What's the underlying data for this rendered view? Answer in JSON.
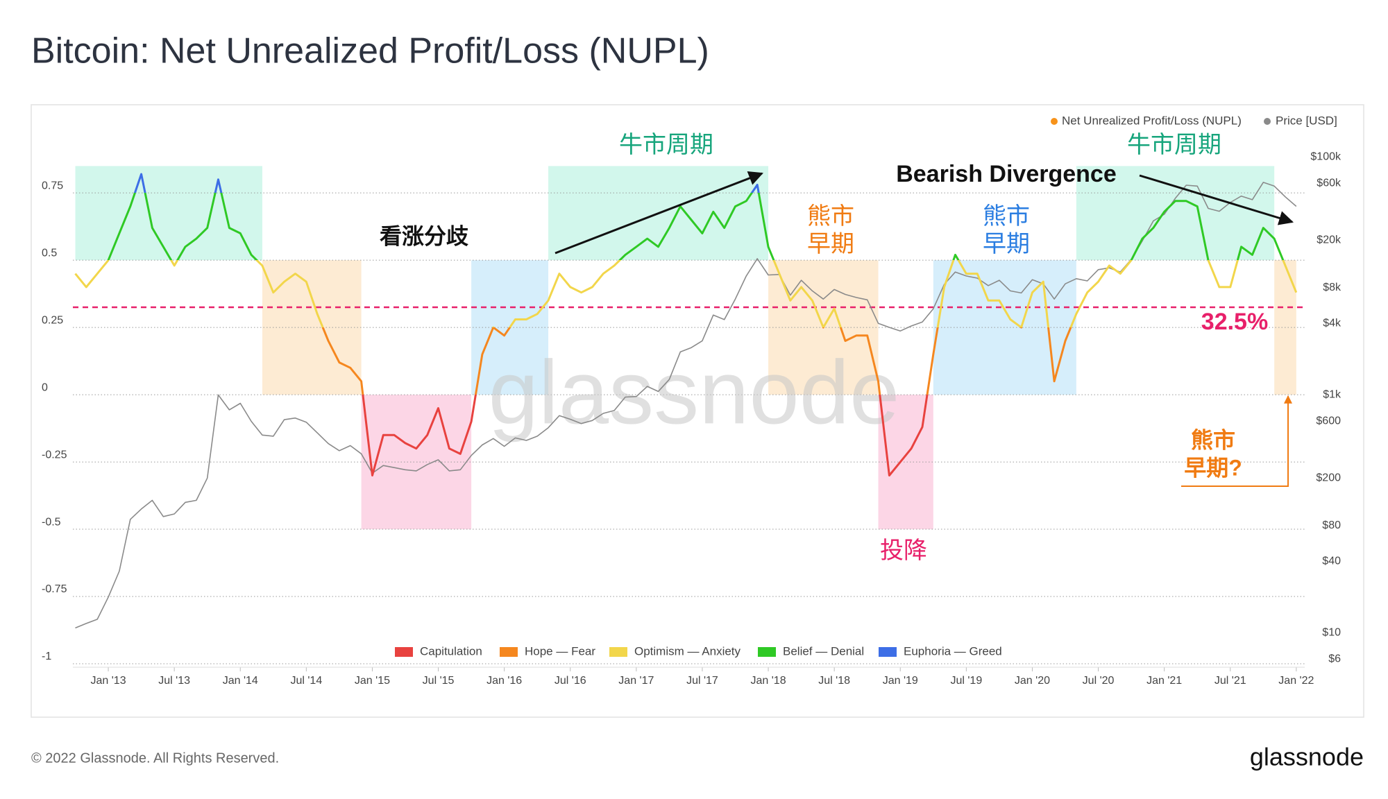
{
  "chart_data": {
    "type": "line",
    "title": "Bitcoin: Net Unrealized Profit/Loss (NUPL)",
    "footer": "© 2022 Glassnode. All Rights Reserved.",
    "logo": "glassnode",
    "watermark": "glassnode",
    "x": [
      "2012-10",
      "2012-11",
      "2012-12",
      "2013-01",
      "2013-02",
      "2013-03",
      "2013-04",
      "2013-05",
      "2013-06",
      "2013-07",
      "2013-08",
      "2013-09",
      "2013-10",
      "2013-11",
      "2013-12",
      "2014-01",
      "2014-02",
      "2014-03",
      "2014-04",
      "2014-05",
      "2014-06",
      "2014-07",
      "2014-08",
      "2014-09",
      "2014-10",
      "2014-11",
      "2014-12",
      "2015-01",
      "2015-02",
      "2015-03",
      "2015-04",
      "2015-05",
      "2015-06",
      "2015-07",
      "2015-08",
      "2015-09",
      "2015-10",
      "2015-11",
      "2015-12",
      "2016-01",
      "2016-02",
      "2016-03",
      "2016-04",
      "2016-05",
      "2016-06",
      "2016-07",
      "2016-08",
      "2016-09",
      "2016-10",
      "2016-11",
      "2016-12",
      "2017-01",
      "2017-02",
      "2017-03",
      "2017-04",
      "2017-05",
      "2017-06",
      "2017-07",
      "2017-08",
      "2017-09",
      "2017-10",
      "2017-11",
      "2017-12",
      "2018-01",
      "2018-02",
      "2018-03",
      "2018-04",
      "2018-05",
      "2018-06",
      "2018-07",
      "2018-08",
      "2018-09",
      "2018-10",
      "2018-11",
      "2018-12",
      "2019-01",
      "2019-02",
      "2019-03",
      "2019-04",
      "2019-05",
      "2019-06",
      "2019-07",
      "2019-08",
      "2019-09",
      "2019-10",
      "2019-11",
      "2019-12",
      "2020-01",
      "2020-02",
      "2020-03",
      "2020-04",
      "2020-05",
      "2020-06",
      "2020-07",
      "2020-08",
      "2020-09",
      "2020-10",
      "2020-11",
      "2020-12",
      "2021-01",
      "2021-02",
      "2021-03",
      "2021-04",
      "2021-05",
      "2021-06",
      "2021-07",
      "2021-08",
      "2021-09",
      "2021-10",
      "2021-11",
      "2021-12",
      "2022-01"
    ],
    "series": [
      {
        "name": "Net Unrealized Profit/Loss (NUPL)",
        "color": "#f7931a",
        "values": [
          0.45,
          0.4,
          0.45,
          0.5,
          0.6,
          0.7,
          0.82,
          0.62,
          0.55,
          0.48,
          0.55,
          0.58,
          0.62,
          0.8,
          0.62,
          0.6,
          0.52,
          0.48,
          0.38,
          0.42,
          0.45,
          0.42,
          0.3,
          0.2,
          0.12,
          0.1,
          0.05,
          -0.3,
          -0.15,
          -0.15,
          -0.18,
          -0.2,
          -0.15,
          -0.05,
          -0.2,
          -0.22,
          -0.1,
          0.15,
          0.25,
          0.22,
          0.28,
          0.28,
          0.3,
          0.35,
          0.45,
          0.4,
          0.38,
          0.4,
          0.45,
          0.48,
          0.52,
          0.55,
          0.58,
          0.55,
          0.62,
          0.7,
          0.65,
          0.6,
          0.68,
          0.62,
          0.7,
          0.72,
          0.78,
          0.55,
          0.45,
          0.35,
          0.4,
          0.35,
          0.25,
          0.32,
          0.2,
          0.22,
          0.22,
          0.05,
          -0.3,
          -0.25,
          -0.2,
          -0.12,
          0.15,
          0.4,
          0.52,
          0.45,
          0.45,
          0.35,
          0.35,
          0.28,
          0.25,
          0.38,
          0.42,
          0.05,
          0.2,
          0.3,
          0.38,
          0.42,
          0.48,
          0.45,
          0.5,
          0.58,
          0.62,
          0.68,
          0.72,
          0.72,
          0.7,
          0.5,
          0.4,
          0.4,
          0.55,
          0.52,
          0.62,
          0.58,
          0.48,
          0.38
        ]
      },
      {
        "name": "Price [USD]",
        "color": "#8a8a8a",
        "axis": "y2",
        "values": [
          11,
          12,
          13,
          20,
          33,
          90,
          110,
          130,
          95,
          100,
          125,
          130,
          200,
          1000,
          750,
          850,
          600,
          460,
          450,
          620,
          640,
          590,
          480,
          390,
          340,
          375,
          320,
          220,
          255,
          245,
          235,
          230,
          260,
          285,
          230,
          235,
          310,
          380,
          430,
          370,
          435,
          415,
          450,
          530,
          670,
          625,
          575,
          610,
          700,
          740,
          960,
          970,
          1180,
          1070,
          1350,
          2300,
          2500,
          2850,
          4700,
          4300,
          6400,
          10000,
          14000,
          10200,
          10300,
          6900,
          9200,
          7500,
          6400,
          7700,
          7000,
          6600,
          6300,
          4000,
          3700,
          3450,
          3800,
          4100,
          5300,
          8500,
          10800,
          10000,
          9600,
          8300,
          9200,
          7500,
          7200,
          9300,
          8600,
          6400,
          8600,
          9500,
          9100,
          11300,
          11700,
          10800,
          13800,
          19700,
          29000,
          33000,
          45000,
          58000,
          57000,
          37000,
          35000,
          41500,
          47000,
          43800,
          61300,
          57000,
          46300,
          38500
        ]
      }
    ],
    "zones": [
      {
        "name": "Capitulation",
        "color": "#e8423f",
        "from": -1,
        "to": 0
      },
      {
        "name": "Hope — Fear",
        "color": "#f5871f",
        "from": 0,
        "to": 0.25
      },
      {
        "name": "Optimism — Anxiety",
        "color": "#f2d64b",
        "from": 0.25,
        "to": 0.5
      },
      {
        "name": "Belief — Denial",
        "color": "#2fc925",
        "from": 0.5,
        "to": 0.75
      },
      {
        "name": "Euphoria — Greed",
        "color": "#3d6ee6",
        "from": 0.75,
        "to": 0.9
      }
    ],
    "bands": [
      {
        "x0": "2012-10",
        "x1": "2014-03",
        "y0": 0.5,
        "y1": 0.85,
        "color": "#d2f7ec"
      },
      {
        "x0": "2014-03",
        "x1": "2014-12",
        "y0": 0,
        "y1": 0.5,
        "color": "#fdebd3"
      },
      {
        "x0": "2014-12",
        "x1": "2015-10",
        "y0": -0.5,
        "y1": 0,
        "color": "#fcd6e6"
      },
      {
        "x0": "2015-10",
        "x1": "2016-05",
        "y0": 0,
        "y1": 0.5,
        "color": "#d6eefb"
      },
      {
        "x0": "2016-05",
        "x1": "2018-01",
        "y0": 0.5,
        "y1": 0.85,
        "color": "#d2f7ec"
      },
      {
        "x0": "2018-01",
        "x1": "2018-11",
        "y0": 0,
        "y1": 0.5,
        "color": "#fdebd3"
      },
      {
        "x0": "2018-11",
        "x1": "2019-04",
        "y0": -0.5,
        "y1": 0,
        "color": "#fcd6e6"
      },
      {
        "x0": "2019-04",
        "x1": "2020-05",
        "y0": 0,
        "y1": 0.5,
        "color": "#d6eefb"
      },
      {
        "x0": "2020-05",
        "x1": "2021-11",
        "y0": 0.5,
        "y1": 0.85,
        "color": "#d2f7ec"
      },
      {
        "x0": "2021-11",
        "x1": "2022-01",
        "y0": 0,
        "y1": 0.5,
        "color": "#fdebd3"
      }
    ],
    "threshold": {
      "value": 0.325,
      "label": "32.5%",
      "color": "#e8206a"
    },
    "annotations": [
      {
        "lines": [
          "牛市周期"
        ],
        "color": "#17a57c"
      },
      {
        "lines": [
          "牛市周期"
        ],
        "color": "#17a57c"
      },
      {
        "lines": [
          "看涨分歧"
        ],
        "color": "#111111"
      },
      {
        "lines": [
          "Bearish Divergence"
        ],
        "color": "#111111"
      },
      {
        "lines": [
          "熊市",
          "早期"
        ],
        "color": "#f07b12"
      },
      {
        "lines": [
          "熊市",
          "早期"
        ],
        "color": "#2a7de1"
      },
      {
        "lines": [
          "投降"
        ],
        "color": "#e8206a"
      },
      {
        "lines": [
          "熊市",
          "早期?"
        ],
        "color": "#f07b12"
      }
    ],
    "ylim": [
      -1,
      0.9
    ],
    "yticks": [
      -1,
      -0.75,
      -0.5,
      -0.25,
      0,
      0.25,
      0.5,
      0.75
    ],
    "y2lim": [
      5.5,
      109000
    ],
    "y2scale": "log",
    "y2ticks": [
      {
        "value": 6,
        "label": "$6"
      },
      {
        "value": 10,
        "label": "$10"
      },
      {
        "value": 40,
        "label": "$40"
      },
      {
        "value": 80,
        "label": "$80"
      },
      {
        "value": 200,
        "label": "$200"
      },
      {
        "value": 600,
        "label": "$600"
      },
      {
        "value": 1000,
        "label": "$1k"
      },
      {
        "value": 4000,
        "label": "$4k"
      },
      {
        "value": 8000,
        "label": "$8k"
      },
      {
        "value": 20000,
        "label": "$20k"
      },
      {
        "value": 60000,
        "label": "$60k"
      },
      {
        "value": 100000,
        "label": "$100k"
      }
    ],
    "xticks": [
      {
        "value": "2013-01",
        "label": "Jan '13"
      },
      {
        "value": "2013-07",
        "label": "Jul '13"
      },
      {
        "value": "2014-01",
        "label": "Jan '14"
      },
      {
        "value": "2014-07",
        "label": "Jul '14"
      },
      {
        "value": "2015-01",
        "label": "Jan '15"
      },
      {
        "value": "2015-07",
        "label": "Jul '15"
      },
      {
        "value": "2016-01",
        "label": "Jan '16"
      },
      {
        "value": "2016-07",
        "label": "Jul '16"
      },
      {
        "value": "2017-01",
        "label": "Jan '17"
      },
      {
        "value": "2017-07",
        "label": "Jul '17"
      },
      {
        "value": "2018-01",
        "label": "Jan '18"
      },
      {
        "value": "2018-07",
        "label": "Jul '18"
      },
      {
        "value": "2019-01",
        "label": "Jan '19"
      },
      {
        "value": "2019-07",
        "label": "Jul '19"
      },
      {
        "value": "2020-01",
        "label": "Jan '20"
      },
      {
        "value": "2020-07",
        "label": "Jul '20"
      },
      {
        "value": "2021-01",
        "label": "Jan '21"
      },
      {
        "value": "2021-07",
        "label": "Jul '21"
      },
      {
        "value": "2022-01",
        "label": "Jan '22"
      }
    ],
    "grid": true
  }
}
